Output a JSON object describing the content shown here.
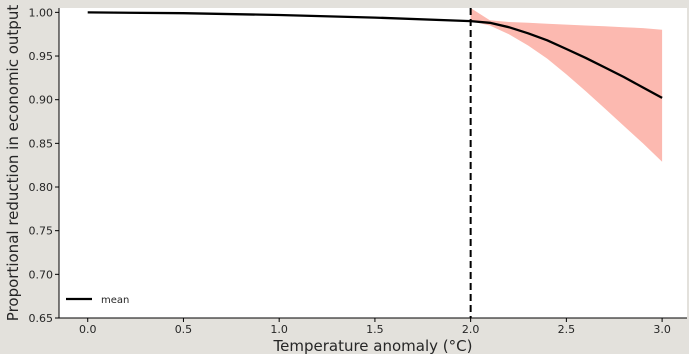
{
  "chart_data": {
    "type": "line",
    "title": "",
    "xlabel": "Temperature anomaly (°C)",
    "ylabel": "Proportional reduction in economic output",
    "xlim": [
      -0.15,
      3.13
    ],
    "ylim": [
      0.65,
      1.005
    ],
    "x_ticks": [
      "0.0",
      "0.5",
      "1.0",
      "1.5",
      "2.0",
      "2.5",
      "3.0"
    ],
    "y_ticks": [
      "0.65",
      "0.70",
      "0.75",
      "0.80",
      "0.85",
      "0.90",
      "0.95",
      "1.00"
    ],
    "vertical_line": {
      "x": 2.0,
      "style": "dashed",
      "color": "#000000"
    },
    "series": [
      {
        "name": "mean",
        "color": "#000000",
        "x": [
          0.0,
          0.5,
          1.0,
          1.5,
          2.0,
          2.1,
          2.2,
          2.3,
          2.4,
          2.5,
          2.6,
          2.7,
          2.8,
          2.9,
          3.0
        ],
        "y": [
          1.0,
          0.999,
          0.997,
          0.994,
          0.99,
          0.988,
          0.983,
          0.976,
          0.968,
          0.958,
          0.948,
          0.937,
          0.926,
          0.914,
          0.902
        ]
      }
    ],
    "band": {
      "color": "#fcb9b0",
      "x": [
        2.0,
        2.1,
        2.2,
        2.3,
        2.4,
        2.5,
        2.6,
        2.7,
        2.8,
        2.9,
        3.0
      ],
      "upper": [
        1.005,
        0.991,
        0.989,
        0.988,
        0.987,
        0.986,
        0.985,
        0.984,
        0.983,
        0.982,
        0.98
      ],
      "lower": [
        0.99,
        0.985,
        0.975,
        0.962,
        0.947,
        0.929,
        0.91,
        0.89,
        0.87,
        0.85,
        0.829
      ]
    },
    "legend": {
      "position": "bottom-left",
      "entries": [
        "mean"
      ]
    }
  }
}
